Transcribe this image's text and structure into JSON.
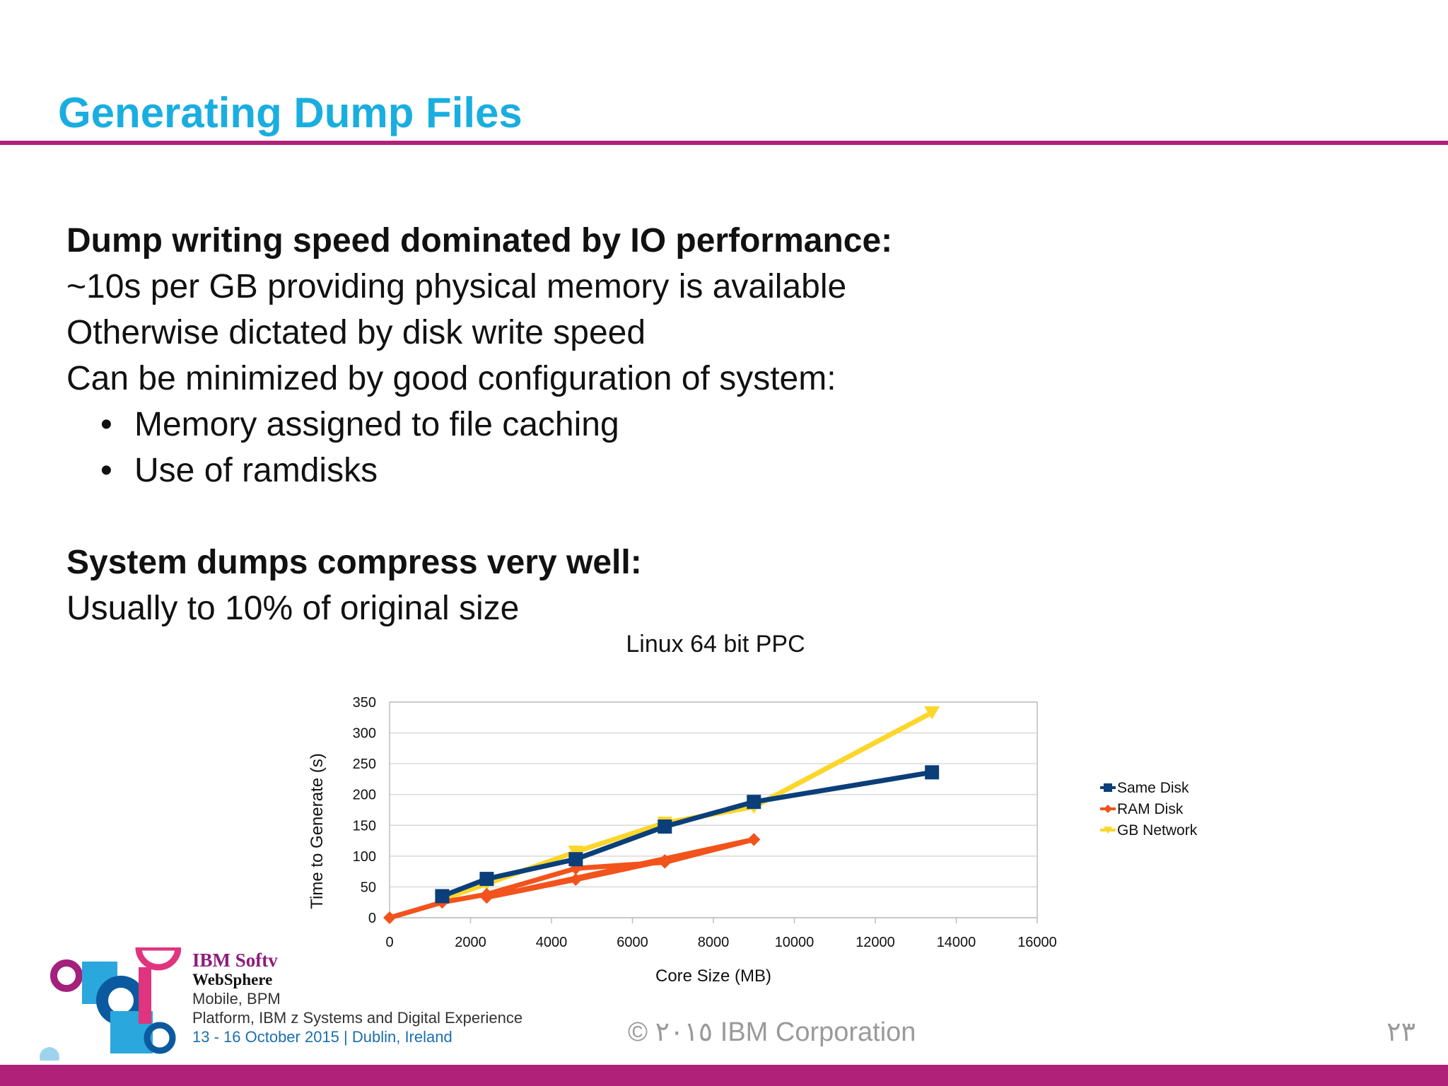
{
  "slide": {
    "title": "Generating Dump Files",
    "section1_heading": "Dump writing speed dominated by IO performance:",
    "section1_lines": [
      "~10s per GB providing physical memory is available",
      "Otherwise dictated by disk write speed",
      "Can be minimized by good configuration of system:"
    ],
    "bullets": [
      "Memory assigned to file caching",
      "Use of ramdisks"
    ],
    "bullet_char": "•",
    "section2_heading": "System dumps compress very well:",
    "section2_line": "Usually to 10% of original size",
    "accent_color": "#b0217a",
    "title_color": "#1aaee0"
  },
  "footer": {
    "copyright": "© ٢٠١٥ IBM Corporation",
    "page_number": "٢٣",
    "conference_brand": "IBM Softv",
    "conference_line1": "WebSphere",
    "conference_line2": "Mobile, BPM",
    "conference_line3": "Platform, IBM z Systems and Digital Experience",
    "conference_dates": "13 - 16 October 2015 | Dublin, Ireland"
  },
  "chart_data": {
    "type": "line",
    "title": "Linux 64 bit PPC",
    "xlabel": "Core Size (MB)",
    "ylabel": "Time to Generate (s)",
    "xlim": [
      0,
      16000
    ],
    "ylim": [
      0,
      350
    ],
    "xticks": [
      0,
      2000,
      4000,
      6000,
      8000,
      10000,
      12000,
      14000,
      16000
    ],
    "yticks": [
      0,
      50,
      100,
      150,
      200,
      250,
      300,
      350
    ],
    "grid": true,
    "legend_position": "right",
    "series": [
      {
        "name": "Same Disk",
        "color": "#0b3f7a",
        "marker": "square",
        "x": [
          1300,
          2400,
          4600,
          6800,
          9000,
          13400
        ],
        "y": [
          35,
          63,
          95,
          148,
          188,
          236
        ]
      },
      {
        "name": "RAM Disk",
        "color": "#f2531c",
        "marker": "diamond",
        "x": [
          0,
          1300,
          2400,
          4600,
          6800,
          9000,
          2400,
          4600,
          6800,
          9000
        ],
        "y": [
          0,
          25,
          38,
          80,
          90,
          127,
          33,
          62,
          93,
          127
        ]
      },
      {
        "name": "GB Network",
        "color": "#fcd62a",
        "marker": "triangle",
        "x": [
          1300,
          2400,
          4600,
          6800,
          9000,
          13400
        ],
        "y": [
          30,
          55,
          107,
          154,
          180,
          333
        ]
      }
    ]
  }
}
